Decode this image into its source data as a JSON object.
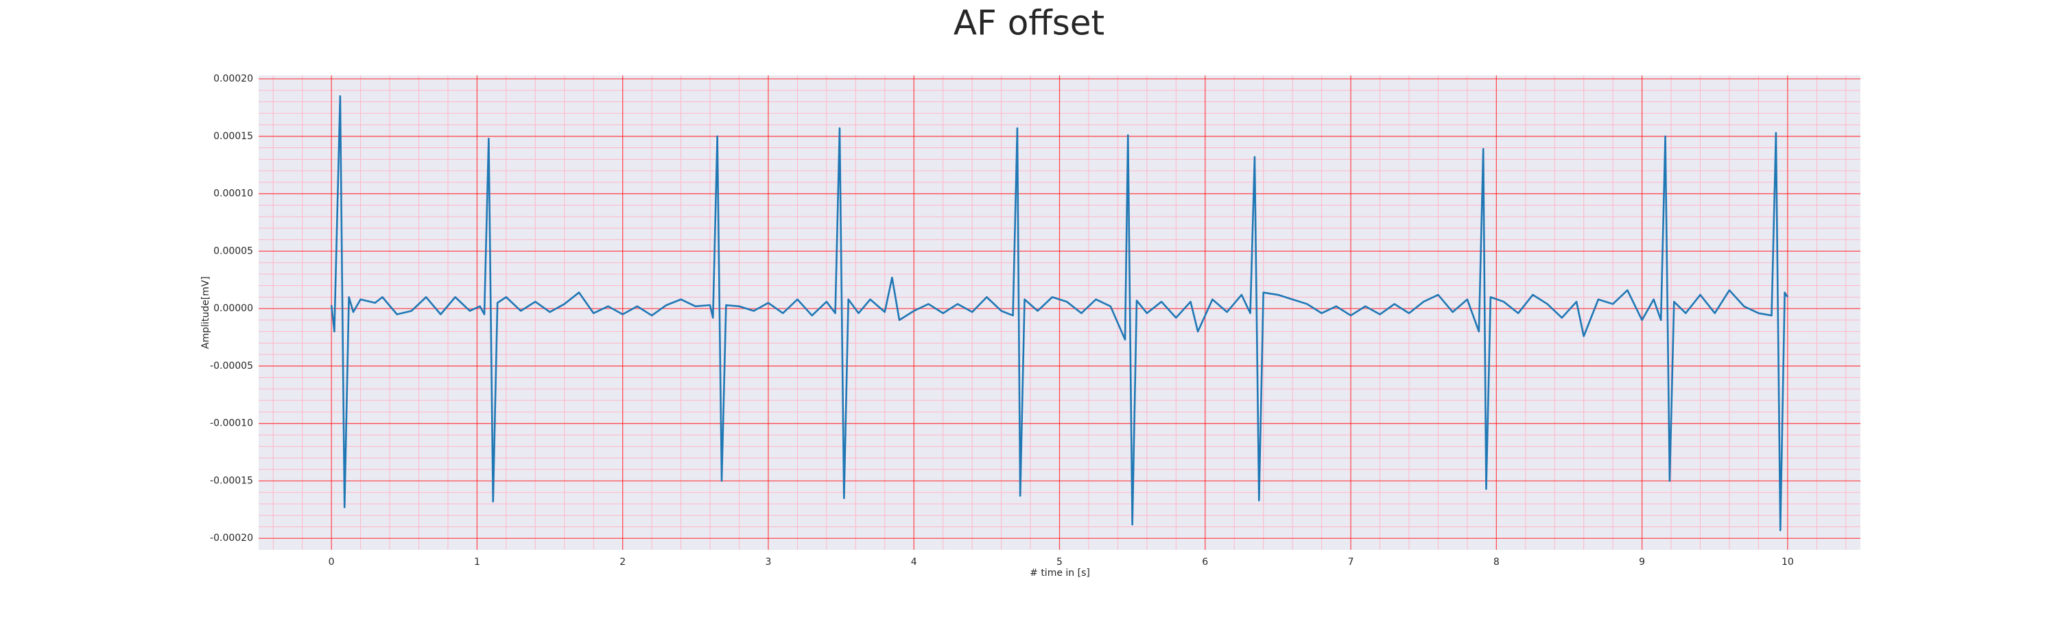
{
  "chart_data": {
    "type": "line",
    "title": "AF offset",
    "xlabel": "# time in [s]",
    "ylabel": "Amplitude[mV]",
    "color": "#1f77b4",
    "grid": true,
    "minor_grid": true,
    "grid_color": "#ff0000",
    "minor_grid_color": "#ffb6c8",
    "background": "#eaeaf2",
    "xlim": [
      -0.5,
      10.5
    ],
    "xticks": [
      0,
      1,
      2,
      3,
      4,
      5,
      6,
      7,
      8,
      9,
      10
    ],
    "ylim": [
      -0.00021,
      0.000203
    ],
    "yticks": [
      {
        "value": -0.0002,
        "label": "-0.00020"
      },
      {
        "value": -0.00015,
        "label": "-0.00015"
      },
      {
        "value": -0.0001,
        "label": "-0.00010"
      },
      {
        "value": -5e-05,
        "label": "-0.00005"
      },
      {
        "value": 0,
        "label": "0.00000"
      },
      {
        "value": 5e-05,
        "label": "0.00005"
      },
      {
        "value": 0.0001,
        "label": "0.00010"
      },
      {
        "value": 0.00015,
        "label": "0.00015"
      },
      {
        "value": 0.0002,
        "label": "0.00020"
      }
    ],
    "x": [
      0,
      0.02,
      0.06,
      0.09,
      0.12,
      0.15,
      0.2,
      0.3,
      0.35,
      0.45,
      0.55,
      0.65,
      0.75,
      0.85,
      0.95,
      1.02,
      1.05,
      1.08,
      1.11,
      1.14,
      1.2,
      1.3,
      1.4,
      1.5,
      1.6,
      1.7,
      1.8,
      1.9,
      2.0,
      2.1,
      2.2,
      2.3,
      2.4,
      2.5,
      2.6,
      2.62,
      2.65,
      2.68,
      2.71,
      2.8,
      2.9,
      3.0,
      3.1,
      3.2,
      3.3,
      3.4,
      3.46,
      3.49,
      3.52,
      3.55,
      3.62,
      3.7,
      3.8,
      3.85,
      3.9,
      4.0,
      4.1,
      4.2,
      4.3,
      4.4,
      4.5,
      4.6,
      4.68,
      4.71,
      4.73,
      4.76,
      4.85,
      4.95,
      5.05,
      5.15,
      5.25,
      5.35,
      5.45,
      5.47,
      5.5,
      5.53,
      5.6,
      5.7,
      5.8,
      5.9,
      5.95,
      6.05,
      6.15,
      6.25,
      6.31,
      6.34,
      6.37,
      6.4,
      6.5,
      6.6,
      6.7,
      6.8,
      6.9,
      7.0,
      7.1,
      7.2,
      7.3,
      7.4,
      7.5,
      7.6,
      7.7,
      7.8,
      7.88,
      7.91,
      7.93,
      7.96,
      8.05,
      8.15,
      8.25,
      8.35,
      8.45,
      8.55,
      8.6,
      8.7,
      8.8,
      8.9,
      9.0,
      9.08,
      9.13,
      9.16,
      9.19,
      9.22,
      9.3,
      9.4,
      9.5,
      9.6,
      9.7,
      9.8,
      9.89,
      9.92,
      9.95,
      9.98,
      10.0
    ],
    "values": [
      3e-06,
      -2e-05,
      0.000185,
      -0.000173,
      1e-05,
      -3e-06,
      8e-06,
      5e-06,
      1e-05,
      -5e-06,
      -2e-06,
      1e-05,
      -5e-06,
      1e-05,
      -2e-06,
      2e-06,
      -5e-06,
      0.000148,
      -0.000168,
      5e-06,
      1e-05,
      -2e-06,
      6e-06,
      -3e-06,
      4e-06,
      1.4e-05,
      -4e-06,
      2e-06,
      -5e-06,
      2e-06,
      -6e-06,
      3e-06,
      8e-06,
      2e-06,
      3e-06,
      -8e-06,
      0.00015,
      -0.00015,
      3e-06,
      2e-06,
      -2e-06,
      5e-06,
      -4e-06,
      8e-06,
      -6e-06,
      6e-06,
      -4e-06,
      0.000157,
      -0.000165,
      8e-06,
      -4e-06,
      8e-06,
      -3e-06,
      2.7e-05,
      -1e-05,
      -2e-06,
      4e-06,
      -4e-06,
      4e-06,
      -3e-06,
      1e-05,
      -2e-06,
      -6e-06,
      0.000157,
      -0.000163,
      8e-06,
      -2e-06,
      1e-05,
      6e-06,
      -4e-06,
      8e-06,
      2e-06,
      -2.7e-05,
      0.000151,
      -0.000188,
      7e-06,
      -4e-06,
      6e-06,
      -8e-06,
      6e-06,
      -2e-05,
      8e-06,
      -3e-06,
      1.2e-05,
      -4e-06,
      0.000132,
      -0.000167,
      1.4e-05,
      1.2e-05,
      8e-06,
      4e-06,
      -4e-06,
      2e-06,
      -6e-06,
      2e-06,
      -5e-06,
      4e-06,
      -4e-06,
      6e-06,
      1.2e-05,
      -3e-06,
      8e-06,
      -2e-05,
      0.000139,
      -0.000157,
      1e-05,
      6e-06,
      -4e-06,
      1.2e-05,
      4e-06,
      -8e-06,
      6e-06,
      -2.4e-05,
      8e-06,
      4e-06,
      1.6e-05,
      -1e-05,
      8e-06,
      -1e-05,
      0.00015,
      -0.00015,
      6e-06,
      -4e-06,
      1.2e-05,
      -4e-06,
      1.6e-05,
      2e-06,
      -4e-06,
      -6e-06,
      0.000153,
      -0.000193,
      1.4e-05,
      1e-05
    ]
  }
}
